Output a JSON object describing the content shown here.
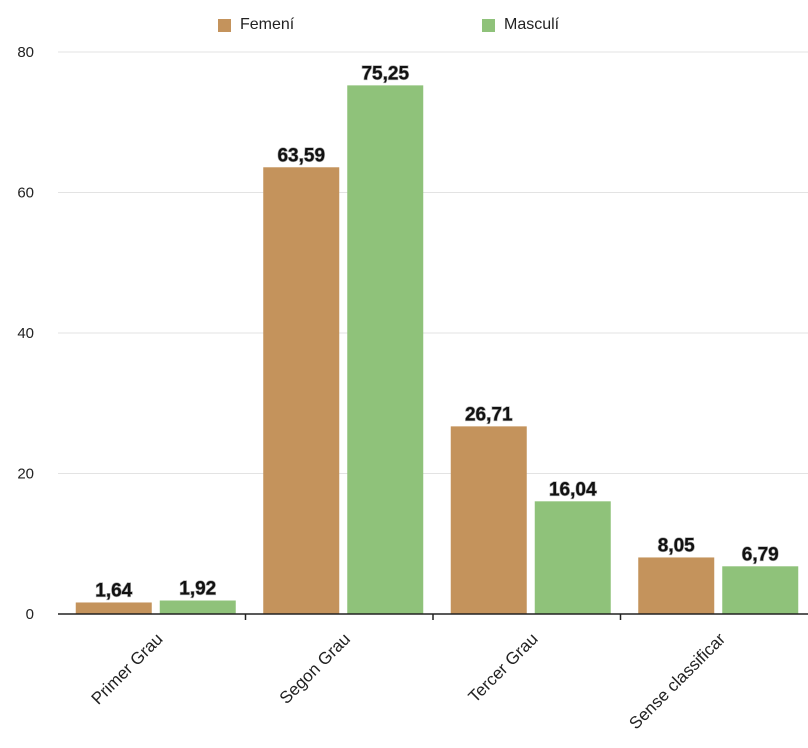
{
  "chart_data": {
    "type": "bar",
    "categories": [
      "Primer Grau",
      "Segon Grau",
      "Tercer Grau",
      "Sense classificar"
    ],
    "series": [
      {
        "name": "Femení",
        "values": [
          1.64,
          63.59,
          26.71,
          8.05
        ],
        "labels": [
          "1,64",
          "63,59",
          "26,71",
          "8,05"
        ],
        "color": "#C4935C"
      },
      {
        "name": "Masculí",
        "values": [
          1.92,
          75.25,
          16.04,
          6.79
        ],
        "labels": [
          "1,92",
          "75,25",
          "16,04",
          "6,79"
        ],
        "color": "#8FC27A"
      }
    ],
    "ylim": [
      0,
      80
    ],
    "yticks": [
      "0",
      "20",
      "40",
      "60",
      "80"
    ],
    "legend_position": "top",
    "grid": true,
    "title": "",
    "xlabel": "",
    "ylabel": ""
  }
}
